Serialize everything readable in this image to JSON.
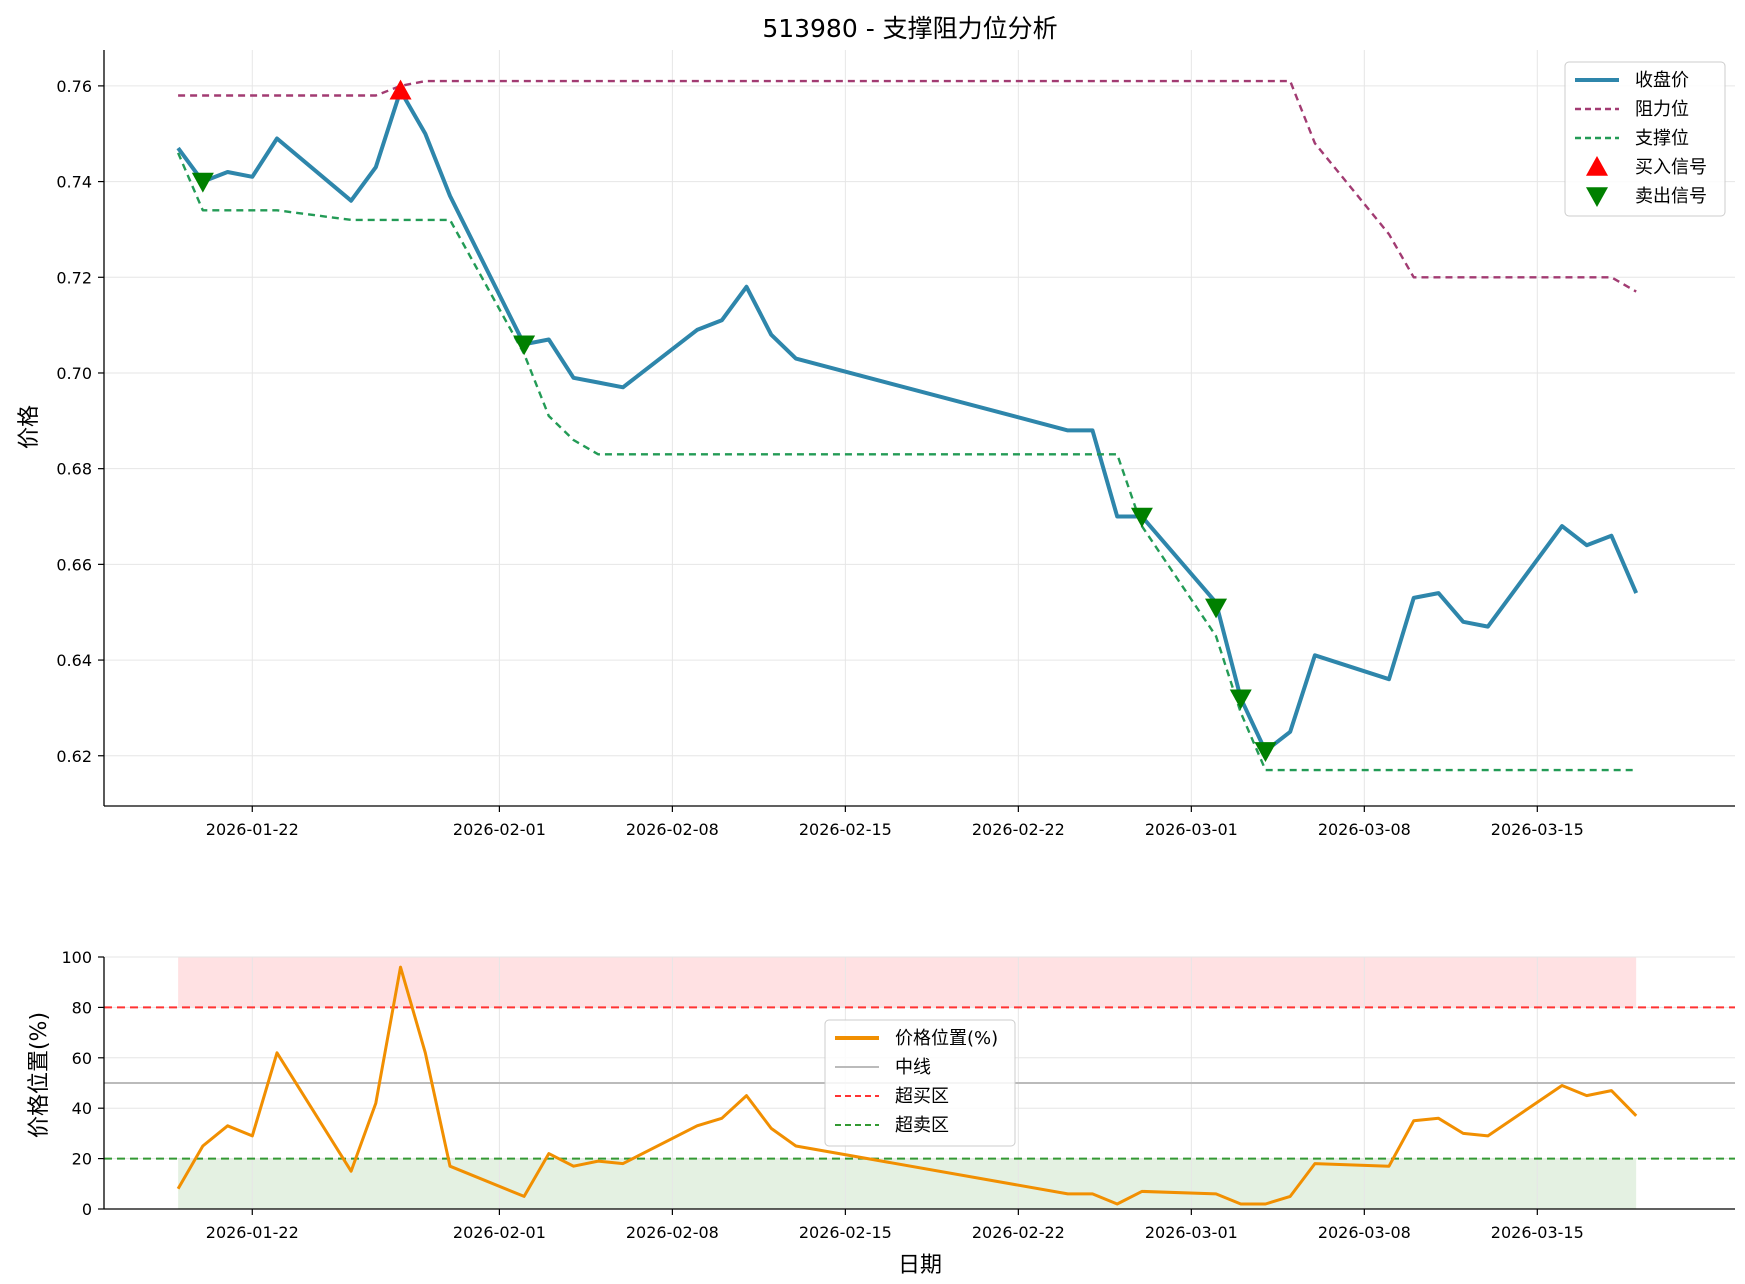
{
  "chart_data": [
    {
      "type": "line",
      "title": "513980 - 支撑阻力位分析",
      "xlabel": "",
      "ylabel": "价格",
      "ylim": [
        0.6095,
        0.7675
      ],
      "yticks": [
        0.62,
        0.64,
        0.66,
        0.68,
        0.7,
        0.72,
        0.74,
        0.76
      ],
      "xticks": [
        "2026-01-22",
        "2026-02-01",
        "2026-02-08",
        "2026-02-15",
        "2026-02-22",
        "2026-03-01",
        "2026-03-08",
        "2026-03-15"
      ],
      "xlim": [
        "2026-01-16",
        "2026-03-23"
      ],
      "grid": true,
      "legend_position": "top-right",
      "x": [
        "2026-01-19",
        "2026-01-20",
        "2026-01-21",
        "2026-01-22",
        "2026-01-23",
        "2026-01-26",
        "2026-01-27",
        "2026-01-28",
        "2026-01-29",
        "2026-01-30",
        "2026-02-02",
        "2026-02-03",
        "2026-02-04",
        "2026-02-05",
        "2026-02-06",
        "2026-02-09",
        "2026-02-10",
        "2026-02-11",
        "2026-02-12",
        "2026-02-13",
        "2026-02-24",
        "2026-02-25",
        "2026-02-26",
        "2026-02-27",
        "2026-03-02",
        "2026-03-03",
        "2026-03-04",
        "2026-03-05",
        "2026-03-06",
        "2026-03-09",
        "2026-03-10",
        "2026-03-11",
        "2026-03-12",
        "2026-03-13",
        "2026-03-16",
        "2026-03-17",
        "2026-03-18",
        "2026-03-19"
      ],
      "series": [
        {
          "name": "收盘价",
          "color": "#2e86ab",
          "style": "solid",
          "values": [
            0.747,
            0.74,
            0.742,
            0.741,
            0.749,
            0.736,
            0.743,
            0.759,
            0.75,
            0.737,
            0.706,
            0.707,
            0.699,
            0.698,
            0.697,
            0.709,
            0.711,
            0.718,
            0.708,
            0.703,
            0.688,
            0.688,
            0.67,
            0.67,
            0.652,
            0.632,
            0.621,
            0.625,
            0.641,
            0.636,
            0.653,
            0.654,
            0.648,
            0.647,
            0.668,
            0.664,
            0.666,
            0.654
          ]
        },
        {
          "name": "阻力位",
          "color": "#a23b72",
          "style": "dashed",
          "values": [
            0.758,
            0.758,
            0.758,
            0.758,
            0.758,
            0.758,
            0.758,
            0.76,
            0.761,
            0.761,
            0.761,
            0.761,
            0.761,
            0.761,
            0.761,
            0.761,
            0.761,
            0.761,
            0.761,
            0.761,
            0.761,
            0.761,
            0.761,
            0.761,
            0.761,
            0.761,
            0.761,
            0.761,
            0.748,
            0.729,
            0.72,
            0.72,
            0.72,
            0.72,
            0.72,
            0.72,
            0.72,
            0.717
          ]
        },
        {
          "name": "支撑位",
          "color": "#239b56",
          "style": "dashed",
          "values": [
            0.746,
            0.734,
            0.734,
            0.734,
            0.734,
            0.732,
            0.732,
            0.732,
            0.732,
            0.732,
            0.704,
            0.691,
            0.686,
            0.683,
            0.683,
            0.683,
            0.683,
            0.683,
            0.683,
            0.683,
            0.683,
            0.683,
            0.683,
            0.668,
            0.645,
            0.629,
            0.617,
            0.617,
            0.617,
            0.617,
            0.617,
            0.617,
            0.617,
            0.617,
            0.617,
            0.617,
            0.617,
            0.617
          ]
        }
      ],
      "markers": [
        {
          "name": "买入信号",
          "color": "#ff0000",
          "shape": "triangle-up",
          "points": [
            {
              "x": "2026-01-28",
              "y": 0.759
            }
          ]
        },
        {
          "name": "卖出信号",
          "color": "#008000",
          "shape": "triangle-down",
          "points": [
            {
              "x": "2026-01-20",
              "y": 0.74
            },
            {
              "x": "2026-02-02",
              "y": 0.706
            },
            {
              "x": "2026-02-27",
              "y": 0.67
            },
            {
              "x": "2026-03-02",
              "y": 0.651
            },
            {
              "x": "2026-03-03",
              "y": 0.632
            },
            {
              "x": "2026-03-04",
              "y": 0.621
            }
          ]
        }
      ]
    },
    {
      "type": "line",
      "title": "",
      "xlabel": "日期",
      "ylabel": "价格位置(%)",
      "ylim": [
        0,
        100
      ],
      "yticks": [
        0,
        20,
        40,
        60,
        80,
        100
      ],
      "xticks": [
        "2026-01-22",
        "2026-02-01",
        "2026-02-08",
        "2026-02-15",
        "2026-02-22",
        "2026-03-01",
        "2026-03-08",
        "2026-03-15"
      ],
      "xlim": [
        "2026-01-16",
        "2026-03-23"
      ],
      "grid": true,
      "legend_position": "center",
      "x": [
        "2026-01-19",
        "2026-01-20",
        "2026-01-21",
        "2026-01-22",
        "2026-01-23",
        "2026-01-26",
        "2026-01-27",
        "2026-01-28",
        "2026-01-29",
        "2026-01-30",
        "2026-02-02",
        "2026-02-03",
        "2026-02-04",
        "2026-02-05",
        "2026-02-06",
        "2026-02-09",
        "2026-02-10",
        "2026-02-11",
        "2026-02-12",
        "2026-02-13",
        "2026-02-24",
        "2026-02-25",
        "2026-02-26",
        "2026-02-27",
        "2026-03-02",
        "2026-03-03",
        "2026-03-04",
        "2026-03-05",
        "2026-03-06",
        "2026-03-09",
        "2026-03-10",
        "2026-03-11",
        "2026-03-12",
        "2026-03-13",
        "2026-03-16",
        "2026-03-17",
        "2026-03-18",
        "2026-03-19"
      ],
      "series": [
        {
          "name": "价格位置(%)",
          "color": "#f18f01",
          "style": "solid",
          "values": [
            8,
            25,
            33,
            29,
            62,
            15,
            42,
            96,
            62,
            17,
            5,
            22,
            17,
            19,
            18,
            33,
            36,
            45,
            32,
            25,
            6,
            6,
            2,
            7,
            6,
            2,
            2,
            5,
            18,
            17,
            35,
            36,
            30,
            29,
            49,
            45,
            47,
            37
          ]
        }
      ],
      "reference_lines": [
        {
          "name": "中线",
          "value": 50,
          "color": "#bbbbbb",
          "style": "solid"
        },
        {
          "name": "超买区",
          "value": 80,
          "color": "#ff3333",
          "style": "dashed"
        },
        {
          "name": "超卖区",
          "value": 20,
          "color": "#339933",
          "style": "dashed"
        }
      ],
      "bands": [
        {
          "from": 80,
          "to": 100,
          "color": "#ffe1e3"
        },
        {
          "from": 0,
          "to": 20,
          "color": "#e4f1e2"
        }
      ]
    }
  ]
}
